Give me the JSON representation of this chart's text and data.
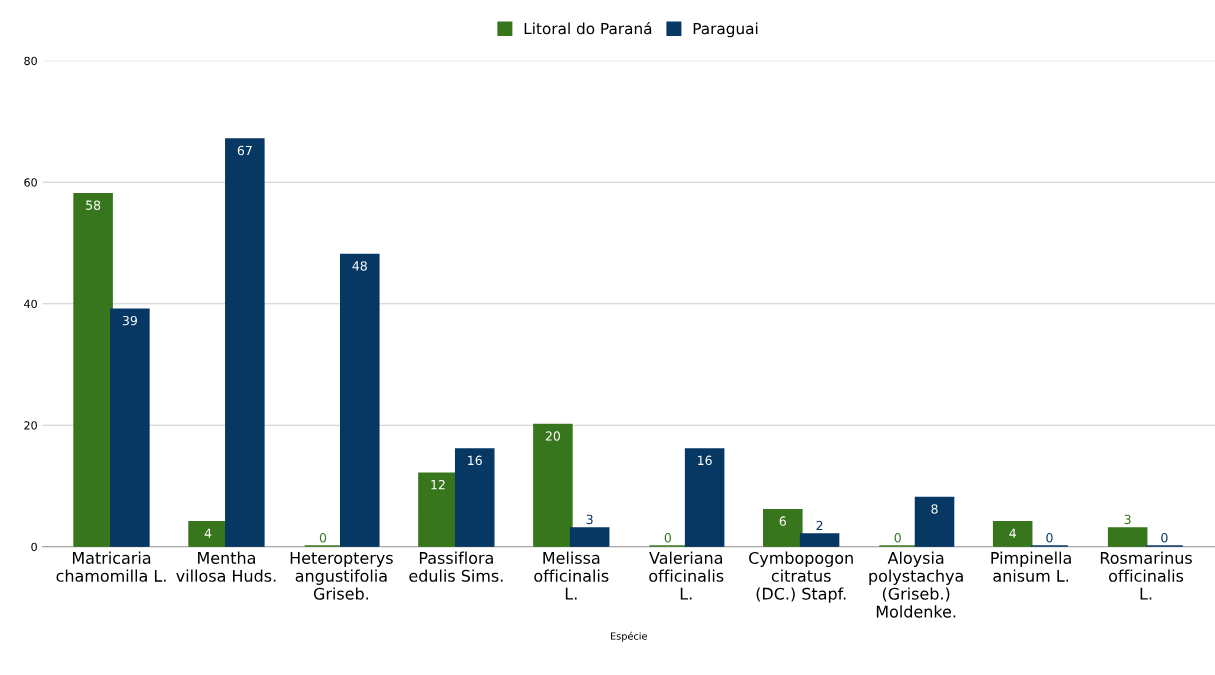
{
  "chart_data": {
    "type": "bar",
    "xlabel": "Espécie",
    "categories": [
      "Matricaria chamomilla L.",
      "Mentha villosa Huds.",
      "Heteropterys angustifolia Griseb.",
      "Passiflora edulis Sims.",
      "Melissa officinalis L.",
      "Valeriana officinalis L.",
      "Cymbopogon citratus (DC.) Stapf.",
      "Aloysia polystachya (Griseb.) Moldenke.",
      "Pimpinella anisum L.",
      "Rosmarinus officinalis L."
    ],
    "series": [
      {
        "name": "Litoral do Paraná",
        "color": "#38761d",
        "values": [
          58,
          4,
          0,
          12,
          20,
          0,
          6,
          0,
          4,
          3
        ]
      },
      {
        "name": "Paraguai",
        "color": "#073763",
        "values": [
          39,
          67,
          48,
          16,
          3,
          16,
          2,
          8,
          0,
          0
        ]
      }
    ],
    "ylim": [
      0,
      80
    ],
    "yticks": [
      0,
      20,
      40,
      60,
      80
    ],
    "grid": "y",
    "legend": "top",
    "data_labels": true
  }
}
